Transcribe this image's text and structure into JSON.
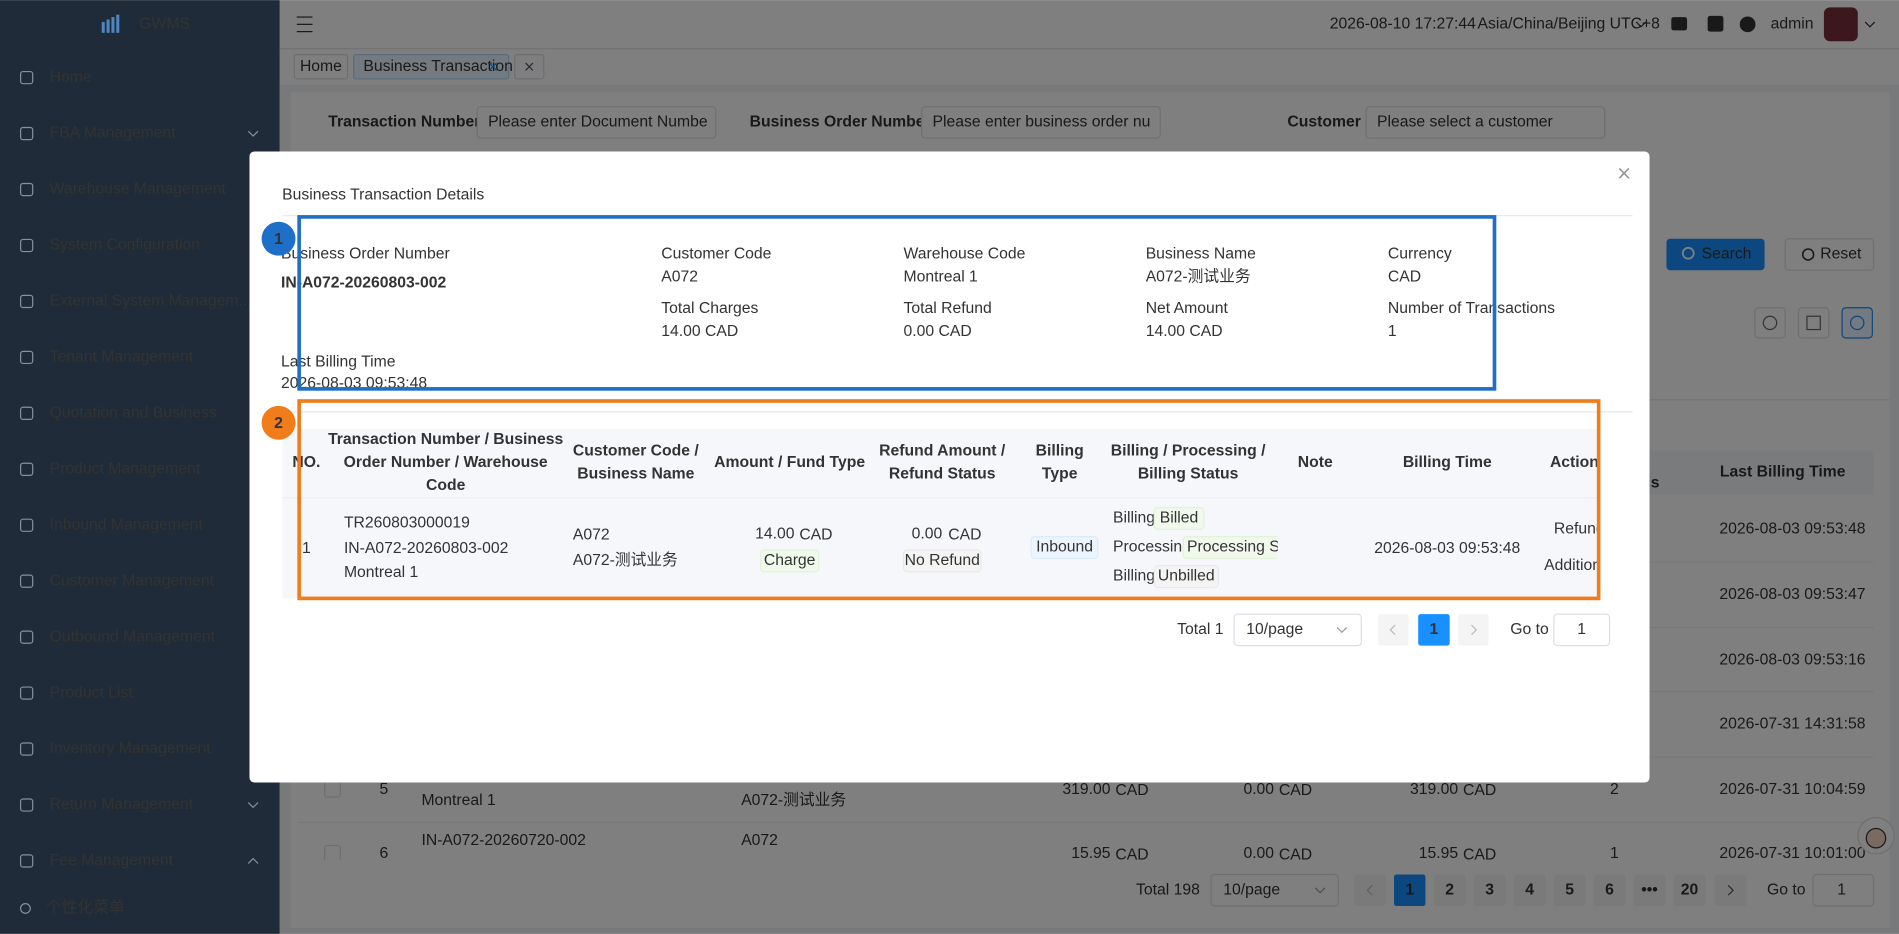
{
  "sidebar": {
    "logo": "GWMS",
    "menu": [
      "Home",
      "FBA Management",
      "Warehouse Management",
      "System Configuration",
      "External System Managem...",
      "Tenant Management",
      "Quotation and Business",
      "Product Management",
      "Inbound Management",
      "Customer Management",
      "Outbound Management",
      "Product List",
      "Inventory Management",
      "Return Management",
      "Fee Management"
    ],
    "footer": "个性化菜单"
  },
  "header": {
    "datetime": "2026-08-10 17:27:44",
    "timezone": "Asia/China/Beijing UTC+8",
    "user": "admin"
  },
  "tabs": [
    "Home",
    "Business Transaction"
  ],
  "filters": [
    {
      "label": "Transaction Number",
      "placeholder": "Please enter Document Numbe"
    },
    {
      "label": "Business Order Number",
      "placeholder": "Please enter business order nu"
    },
    {
      "label": "Customer",
      "placeholder": "Please select a customer"
    }
  ],
  "buttons": {
    "search": "Search",
    "reset": "Reset"
  },
  "background_table": {
    "headers": [
      "s",
      "Last Billing Time"
    ],
    "last_billing_times": [
      "2026-08-03 09:53:48",
      "2026-08-03 09:53:47",
      "2026-08-03 09:53:16",
      "2026-07-31 14:31:58",
      "2026-07-31 10:04:59",
      "2026-07-31 10:01:00"
    ],
    "currency": "CAD",
    "rows": [
      {
        "no": "5",
        "order": "Montreal 1",
        "business": "A072-测试业务",
        "amount": "319.00",
        "refund": "0.00",
        "net": "319.00",
        "count": "2"
      },
      {
        "no": "6",
        "order": "IN-A072-20260720-002",
        "business": "A072",
        "amount": "15.95",
        "refund": "0.00",
        "net": "15.95",
        "count": "1"
      }
    ]
  },
  "background_pagination": {
    "total": "Total 198",
    "page_size": "10/page",
    "pages": [
      "1",
      "2",
      "3",
      "4",
      "5",
      "6",
      "•••",
      "20"
    ],
    "goto": "Go to",
    "goto_value": "1"
  },
  "modal": {
    "title": "Business Transaction Details",
    "summary": {
      "order_label": "Business Order Number",
      "order_value": "IN-A072-20260803-002",
      "fields": [
        {
          "label": "Customer Code",
          "value": "A072"
        },
        {
          "label": "Warehouse Code",
          "value": "Montreal 1"
        },
        {
          "label": "Business Name",
          "value": "A072-测试业务"
        },
        {
          "label": "Currency",
          "value": "CAD"
        },
        {
          "label": "Total Charges",
          "value": "14.00 CAD"
        },
        {
          "label": "Total Refund",
          "value": "0.00 CAD"
        },
        {
          "label": "Net Amount",
          "value": "14.00 CAD"
        },
        {
          "label": "Number of Transactions",
          "value": "1"
        }
      ],
      "last_billing_label": "Last Billing Time",
      "last_billing_value": "2026-08-03 09:53:48"
    },
    "table": {
      "headers": [
        [
          "NO."
        ],
        [
          "Transaction Number / Business",
          "Order Number / Warehouse",
          "Code"
        ],
        [
          "Customer Code /",
          "Business Name"
        ],
        [
          "Amount / Fund Type"
        ],
        [
          "Refund Amount /",
          "Refund Status"
        ],
        [
          "Billing",
          "Type"
        ],
        [
          "Billing / Processing /",
          "Billing Status"
        ],
        [
          "Note"
        ],
        [
          "Billing Time"
        ],
        [
          "Action"
        ]
      ],
      "row": {
        "no": "1",
        "transaction": "TR260803000019",
        "order": "IN-A072-20260803-002",
        "warehouse": "Montreal 1",
        "customer_code": "A072",
        "business_name": "A072-测试业务",
        "amount": "14.00",
        "currency": "CAD",
        "fund_type": "Charge",
        "refund": "0.00",
        "refund_status": "No Refund",
        "billing_type": "Inbound",
        "statuses": [
          {
            "label": "Billing",
            "tag": "Billed"
          },
          {
            "label": "Processing",
            "tag": "Processing Su"
          },
          {
            "label": "Billing",
            "tag": "Unbilled"
          }
        ],
        "billing_time": "2026-08-03 09:53:48",
        "actions": [
          "Refund",
          "Additional"
        ]
      }
    },
    "pagination": {
      "total": "Total 1",
      "page_size": "10/page",
      "page": "1",
      "goto": "Go to",
      "goto_value": "1"
    }
  },
  "annotations": [
    "1",
    "2"
  ]
}
